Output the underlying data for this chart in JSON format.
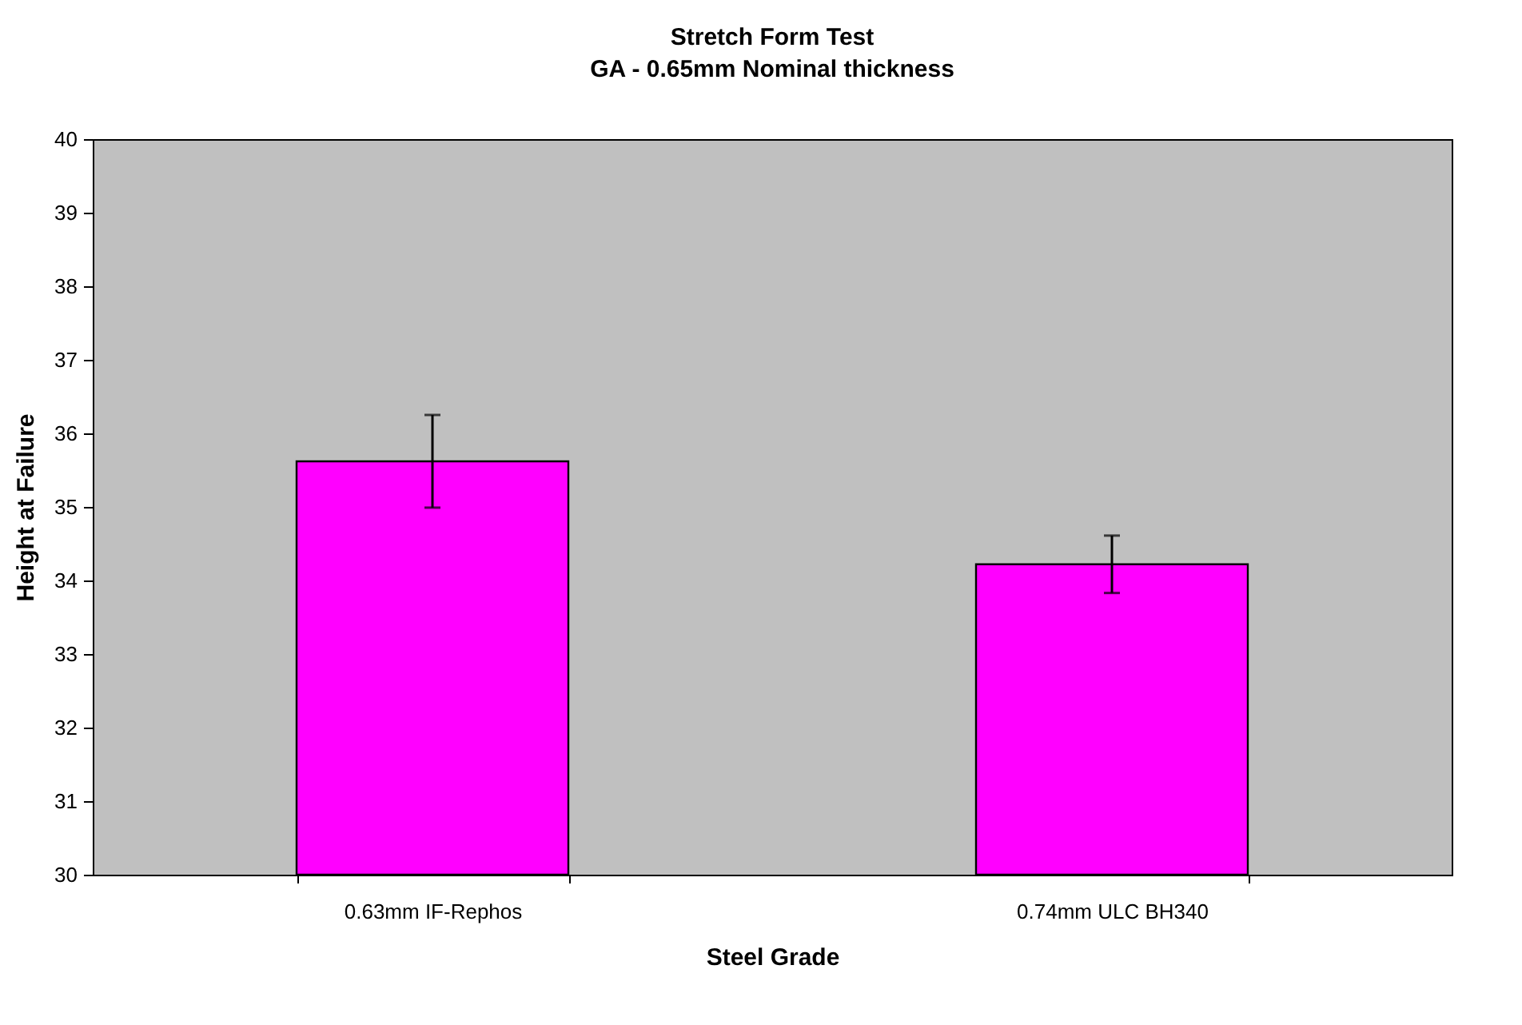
{
  "chart_data": {
    "type": "bar",
    "title": [
      "Stretch Form Test",
      "GA - 0.65mm Nominal thickness"
    ],
    "xlabel": "Steel Grade",
    "ylabel": "Height at Failure",
    "categories": [
      "0.63mm IF-Rephos",
      "0.74mm ULC BH340"
    ],
    "values": [
      35.62,
      34.22
    ],
    "errors": [
      0.63,
      0.39
    ],
    "color": "#ff00ff",
    "ylim": [
      30,
      40
    ],
    "yticks": [
      30,
      31,
      32,
      33,
      34,
      35,
      36,
      37,
      38,
      39,
      40
    ],
    "grid": false
  }
}
